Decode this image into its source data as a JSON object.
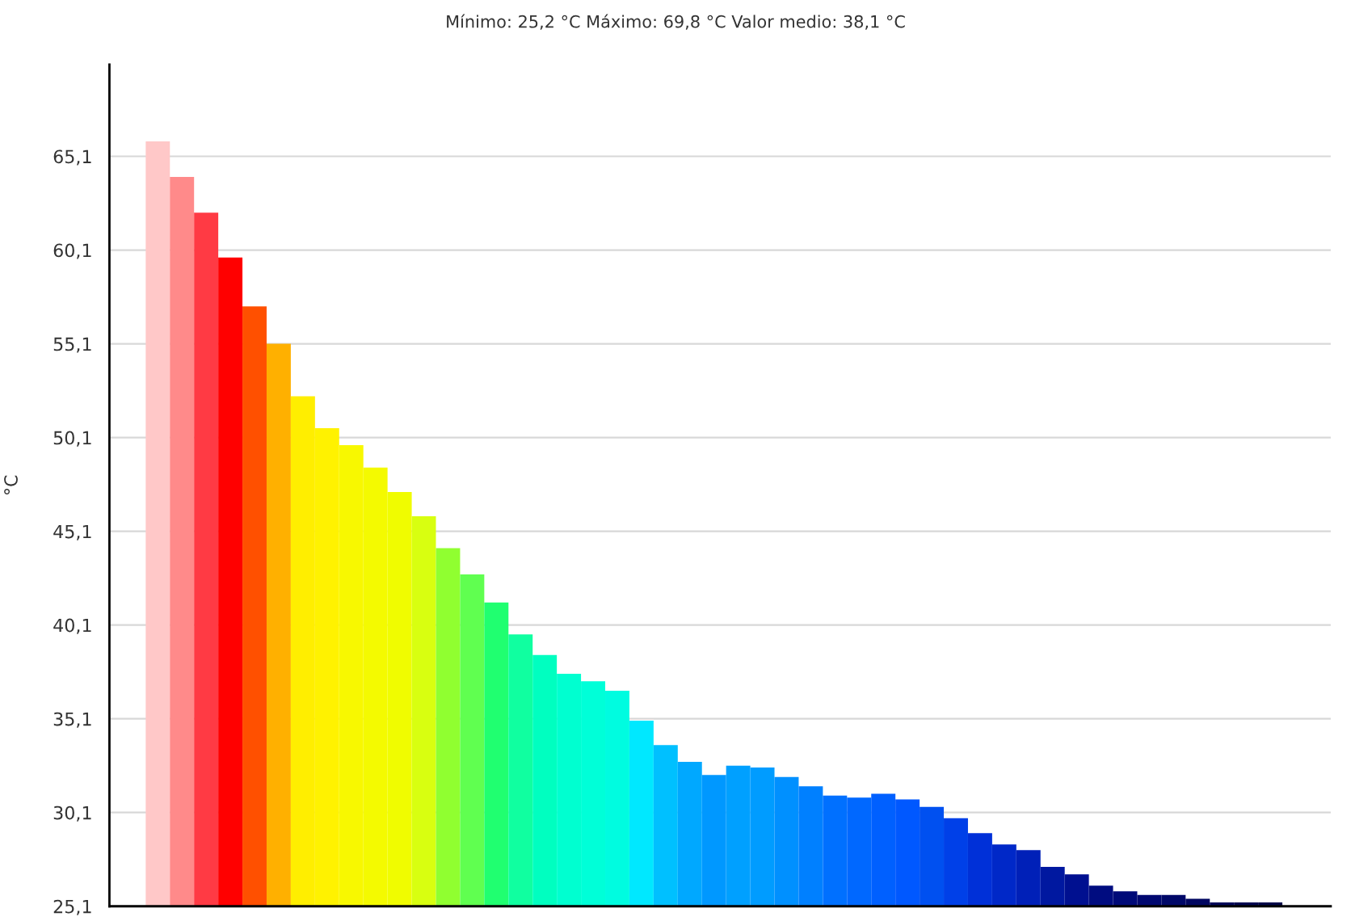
{
  "chart_data": {
    "type": "bar",
    "title": "Mínimo: 25,2 °C Máximo: 69,8 °C Valor medio: 38,1 °C",
    "ylabel": "°C",
    "categories": [
      null,
      null,
      null,
      null,
      null,
      null,
      null,
      null,
      null,
      null,
      null,
      null,
      null,
      null,
      null,
      null,
      null,
      null,
      null,
      null,
      null,
      null,
      null,
      null,
      null,
      null,
      null,
      null,
      null,
      null,
      null,
      null,
      null,
      null,
      null,
      null,
      null,
      null,
      null,
      null,
      null,
      null,
      null,
      null,
      null,
      null,
      null
    ],
    "values": [
      65.9,
      64.0,
      62.1,
      59.7,
      57.1,
      55.1,
      52.3,
      50.6,
      49.7,
      48.5,
      47.2,
      45.9,
      44.2,
      42.8,
      41.3,
      39.6,
      38.5,
      37.5,
      37.1,
      36.6,
      35.0,
      33.7,
      32.8,
      32.1,
      32.6,
      32.5,
      32.0,
      31.5,
      31.0,
      30.9,
      31.1,
      30.8,
      30.4,
      29.8,
      29.0,
      28.4,
      28.1,
      27.2,
      26.8,
      26.2,
      25.9,
      25.7,
      25.7,
      25.5,
      25.3,
      25.3,
      25.3
    ],
    "colors": [
      "#ffc8c8",
      "#ff8a8a",
      "#ff3a44",
      "#ff0000",
      "#ff5000",
      "#ffb000",
      "#ffee00",
      "#fff200",
      "#f8f800",
      "#f4fa00",
      "#f0fc00",
      "#d8ff10",
      "#90ff30",
      "#60ff50",
      "#20ff70",
      "#10ffa0",
      "#00ffc0",
      "#00ffd0",
      "#00ffd8",
      "#00fce0",
      "#00e8ff",
      "#00c0ff",
      "#00a8ff",
      "#0098ff",
      "#00a0ff",
      "#009cff",
      "#0090ff",
      "#0080ff",
      "#0070ff",
      "#0068ff",
      "#0060ff",
      "#0058ff",
      "#0050f0",
      "#0040e8",
      "#0030d8",
      "#0028c8",
      "#0020b8",
      "#0018a0",
      "#001090",
      "#000c80",
      "#000a78",
      "#000870",
      "#000868",
      "#000660",
      "#000658",
      "#000550",
      "#000448"
    ],
    "ylim": [
      25.1,
      70.0
    ],
    "yticks": [
      {
        "value": 25.1,
        "label": "25,1"
      },
      {
        "value": 30.1,
        "label": "30,1"
      },
      {
        "value": 35.1,
        "label": "35,1"
      },
      {
        "value": 40.1,
        "label": "40,1"
      },
      {
        "value": 45.1,
        "label": "45,1"
      },
      {
        "value": 50.1,
        "label": "50,1"
      },
      {
        "value": 55.1,
        "label": "55,1"
      },
      {
        "value": 60.1,
        "label": "60,1"
      },
      {
        "value": 65.1,
        "label": "65,1"
      }
    ],
    "grid": "y",
    "tick_labels": "y"
  }
}
